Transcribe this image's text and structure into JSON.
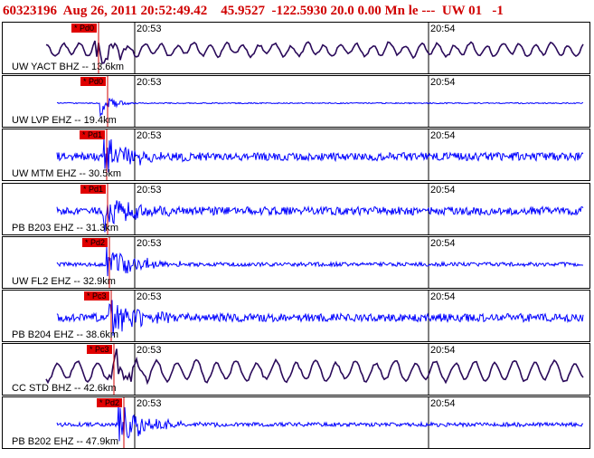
{
  "header": {
    "text": "60323196  Aug 26, 2011 20:52:49.42    45.9527  -122.5930 20.0 0.00 Mn le ---  UW 01   -1"
  },
  "colors": {
    "header": "#d00000",
    "trace_bhz": "#2a0a5a",
    "trace_ehz": "#0000ff",
    "pick_box": "#e00000",
    "pick_line": "#d00000",
    "gridline": "#000000"
  },
  "time_labels": [
    "20:53",
    "20:54"
  ],
  "panels": [
    {
      "station": "UW YACT BHZ -- 13.6km",
      "pick": "* Pd0",
      "type": "bhz",
      "onset": 0.112
    },
    {
      "station": "UW LVP EHZ -- 19.4km",
      "pick": "* Pd0",
      "type": "ehz_quiet",
      "onset": 0.12
    },
    {
      "station": "UW MTM EHZ -- 30.5km",
      "pick": "* Pd1",
      "type": "ehz",
      "onset": 0.125
    },
    {
      "station": "PB B203 EHZ -- 31.3km",
      "pick": "* Pd1",
      "type": "ehz",
      "onset": 0.125
    },
    {
      "station": "UW FL2 EHZ -- 32.9km",
      "pick": "* Pd2",
      "type": "ehz_mid",
      "onset": 0.13
    },
    {
      "station": "PB B204 EHZ -- 38.6km",
      "pick": "* Pc3",
      "type": "ehz",
      "onset": 0.135
    },
    {
      "station": "CC STD BHZ -- 42.6km",
      "pick": "* Pc3",
      "type": "bhz2",
      "onset": 0.145
    },
    {
      "station": "PB B202 EHZ -- 47.9km",
      "pick": "* Pd2",
      "type": "ehz_mid",
      "onset": 0.15
    }
  ]
}
